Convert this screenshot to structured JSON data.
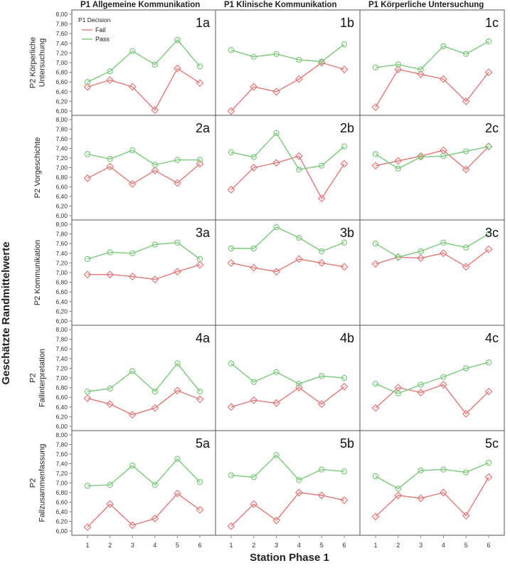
{
  "figure": {
    "y_axis_title": "Geschätzte Randmittelwerte",
    "x_axis_title": "Station Phase 1",
    "column_titles": [
      "P1 Allgemeine Kommunikation",
      "P1 Klinische Kommunikation",
      "P1 Körperliche Untersuchung"
    ],
    "row_titles": [
      [
        "P2 Körperliche",
        "Untersuchung"
      ],
      [
        "P2 Vorgeschichte"
      ],
      [
        "P2 Kommunikation"
      ],
      [
        "P2",
        "Fallinterpretation"
      ],
      [
        "P2",
        "Fallzusammenfassung"
      ]
    ],
    "legend": {
      "title": "P1 Decision",
      "position": "top-left of panel 1a",
      "entries": [
        "Fail",
        "Pass"
      ]
    },
    "colors": {
      "fail": "#e07a7a",
      "pass": "#7cc97c",
      "frame": "#555555",
      "grid_tick": "#888888"
    }
  },
  "chart_data": {
    "type": "line",
    "x": [
      1,
      2,
      3,
      4,
      5,
      6
    ],
    "x_tick_labels": [
      "1",
      "2",
      "3",
      "4",
      "5",
      "6"
    ],
    "ylim": [
      6.0,
      8.0
    ],
    "y_tick_labels": [
      "6,00",
      "6,20",
      "6,40",
      "6,60",
      "6,80",
      "7,00",
      "7,20",
      "7,40",
      "7,60",
      "7,80",
      "8,00"
    ],
    "panels": [
      {
        "label": "1a",
        "series": [
          {
            "name": "Fail",
            "values": [
              6.5,
              6.64,
              6.5,
              6.02,
              6.88,
              6.58
            ]
          },
          {
            "name": "Pass",
            "values": [
              6.6,
              6.82,
              7.24,
              6.96,
              7.47,
              6.92
            ]
          }
        ]
      },
      {
        "label": "1b",
        "series": [
          {
            "name": "Fail",
            "values": [
              6.0,
              6.5,
              6.4,
              6.66,
              7.0,
              6.86
            ]
          },
          {
            "name": "Pass",
            "values": [
              7.26,
              7.12,
              7.18,
              7.06,
              7.02,
              7.38
            ]
          }
        ]
      },
      {
        "label": "1c",
        "series": [
          {
            "name": "Fail",
            "values": [
              6.08,
              6.86,
              6.76,
              6.66,
              6.2,
              6.8
            ]
          },
          {
            "name": "Pass",
            "values": [
              6.9,
              6.96,
              6.86,
              7.34,
              7.18,
              7.44
            ]
          }
        ]
      },
      {
        "label": "2a",
        "series": [
          {
            "name": "Fail",
            "values": [
              6.78,
              7.02,
              6.66,
              6.94,
              6.68,
              7.08
            ]
          },
          {
            "name": "Pass",
            "values": [
              7.28,
              7.18,
              7.36,
              7.06,
              7.16,
              7.16
            ]
          }
        ]
      },
      {
        "label": "2b",
        "series": [
          {
            "name": "Fail",
            "values": [
              6.54,
              7.0,
              7.1,
              7.24,
              6.36,
              7.08
            ]
          },
          {
            "name": "Pass",
            "values": [
              7.32,
              7.22,
              7.72,
              6.96,
              7.04,
              7.44
            ]
          }
        ]
      },
      {
        "label": "2c",
        "series": [
          {
            "name": "Fail",
            "values": [
              7.04,
              7.14,
              7.24,
              7.36,
              6.96,
              7.44
            ]
          },
          {
            "name": "Pass",
            "values": [
              7.28,
              6.98,
              7.22,
              7.24,
              7.34,
              7.44
            ]
          }
        ]
      },
      {
        "label": "3a",
        "series": [
          {
            "name": "Fail",
            "values": [
              6.96,
              6.96,
              6.92,
              6.86,
              7.02,
              7.16
            ]
          },
          {
            "name": "Pass",
            "values": [
              7.28,
              7.42,
              7.4,
              7.58,
              7.62,
              7.28
            ]
          }
        ]
      },
      {
        "label": "3b",
        "series": [
          {
            "name": "Fail",
            "values": [
              7.2,
              7.1,
              7.02,
              7.28,
              7.2,
              7.12
            ]
          },
          {
            "name": "Pass",
            "values": [
              7.5,
              7.5,
              7.94,
              7.72,
              7.44,
              7.62
            ]
          }
        ]
      },
      {
        "label": "3c",
        "series": [
          {
            "name": "Fail",
            "values": [
              7.18,
              7.32,
              7.3,
              7.4,
              7.12,
              7.48
            ]
          },
          {
            "name": "Pass",
            "values": [
              7.6,
              7.32,
              7.44,
              7.62,
              7.52,
              7.8
            ]
          }
        ]
      },
      {
        "label": "4a",
        "series": [
          {
            "name": "Fail",
            "values": [
              6.58,
              6.46,
              6.24,
              6.38,
              6.74,
              6.56
            ]
          },
          {
            "name": "Pass",
            "values": [
              6.72,
              6.78,
              7.14,
              6.72,
              7.3,
              6.72
            ]
          }
        ]
      },
      {
        "label": "4b",
        "series": [
          {
            "name": "Fail",
            "values": [
              6.4,
              6.54,
              6.48,
              6.8,
              6.46,
              6.82
            ]
          },
          {
            "name": "Pass",
            "values": [
              7.3,
              6.92,
              7.12,
              6.88,
              7.04,
              7.0
            ]
          }
        ]
      },
      {
        "label": "4c",
        "series": [
          {
            "name": "Fail",
            "values": [
              6.38,
              6.8,
              6.7,
              6.86,
              6.26,
              6.72
            ]
          },
          {
            "name": "Pass",
            "values": [
              6.88,
              6.68,
              6.86,
              7.02,
              7.2,
              7.32
            ]
          }
        ]
      },
      {
        "label": "5a",
        "series": [
          {
            "name": "Fail",
            "values": [
              6.08,
              6.56,
              6.12,
              6.26,
              6.78,
              6.44
            ]
          },
          {
            "name": "Pass",
            "values": [
              6.94,
              6.96,
              7.36,
              6.96,
              7.5,
              7.02
            ]
          }
        ]
      },
      {
        "label": "5b",
        "series": [
          {
            "name": "Fail",
            "values": [
              6.1,
              6.56,
              6.22,
              6.8,
              6.74,
              6.64
            ]
          },
          {
            "name": "Pass",
            "values": [
              7.16,
              7.12,
              7.58,
              7.06,
              7.28,
              7.24
            ]
          }
        ]
      },
      {
        "label": "5c",
        "series": [
          {
            "name": "Fail",
            "values": [
              6.3,
              6.74,
              6.68,
              6.8,
              6.32,
              7.12
            ]
          },
          {
            "name": "Pass",
            "values": [
              7.14,
              6.88,
              7.26,
              7.28,
              7.22,
              7.42
            ]
          }
        ]
      }
    ]
  }
}
